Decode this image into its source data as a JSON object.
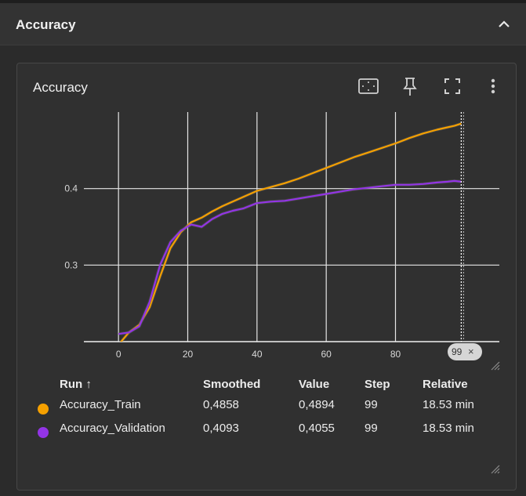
{
  "section": {
    "title": "Accuracy"
  },
  "card": {
    "title": "Accuracy"
  },
  "toolbar": {
    "fit_icon": "fit-domain-icon",
    "pin_icon": "pin-icon",
    "fullscreen_icon": "fullscreen-icon",
    "menu_icon": "more-vert-icon"
  },
  "chart_data": {
    "type": "line",
    "title": "",
    "xlabel": "",
    "ylabel": "",
    "xlim": [
      -10,
      110
    ],
    "ylim": [
      0.2,
      0.5
    ],
    "x_ticks": [
      0,
      20,
      40,
      60,
      80
    ],
    "y_ticks": [
      0.3,
      0.4
    ],
    "y_tick_labels": [
      "0.3",
      "0.4"
    ],
    "grid": true,
    "hover_step": 99,
    "series": [
      {
        "name": "Accuracy_Train",
        "color": "#f5a000",
        "x": [
          0,
          3,
          6,
          9,
          12,
          15,
          18,
          21,
          24,
          27,
          30,
          33,
          36,
          40,
          44,
          48,
          52,
          56,
          60,
          64,
          68,
          72,
          76,
          80,
          84,
          88,
          92,
          95,
          97,
          99
        ],
        "y": [
          0.196,
          0.212,
          0.222,
          0.245,
          0.285,
          0.322,
          0.343,
          0.356,
          0.362,
          0.37,
          0.377,
          0.383,
          0.389,
          0.397,
          0.402,
          0.407,
          0.413,
          0.42,
          0.427,
          0.434,
          0.441,
          0.447,
          0.453,
          0.459,
          0.466,
          0.472,
          0.477,
          0.48,
          0.482,
          0.485
        ]
      },
      {
        "name": "Accuracy_Validation",
        "color": "#9334e6",
        "x": [
          0,
          3,
          6,
          9,
          12,
          15,
          18,
          21,
          24,
          27,
          30,
          33,
          36,
          40,
          44,
          48,
          52,
          56,
          60,
          64,
          68,
          72,
          76,
          80,
          84,
          88,
          92,
          95,
          97,
          99
        ],
        "y": [
          0.21,
          0.212,
          0.22,
          0.252,
          0.3,
          0.33,
          0.345,
          0.353,
          0.35,
          0.36,
          0.367,
          0.371,
          0.374,
          0.381,
          0.383,
          0.384,
          0.387,
          0.39,
          0.393,
          0.396,
          0.399,
          0.401,
          0.403,
          0.405,
          0.405,
          0.406,
          0.408,
          0.409,
          0.41,
          0.409
        ]
      }
    ]
  },
  "table": {
    "headers": {
      "run": "Run ↑",
      "smoothed": "Smoothed",
      "value": "Value",
      "step": "Step",
      "relative": "Relative"
    },
    "rows": [
      {
        "color": "#f5a000",
        "run": "Accuracy_Train",
        "smoothed": "0,4858",
        "value": "0,4894",
        "step": "99",
        "relative": "18.53 min"
      },
      {
        "color": "#9334e6",
        "run": "Accuracy_Validation",
        "smoothed": "0,4093",
        "value": "0,4055",
        "step": "99",
        "relative": "18.53 min"
      }
    ]
  },
  "step_badge": {
    "label": "99",
    "close": "×"
  }
}
